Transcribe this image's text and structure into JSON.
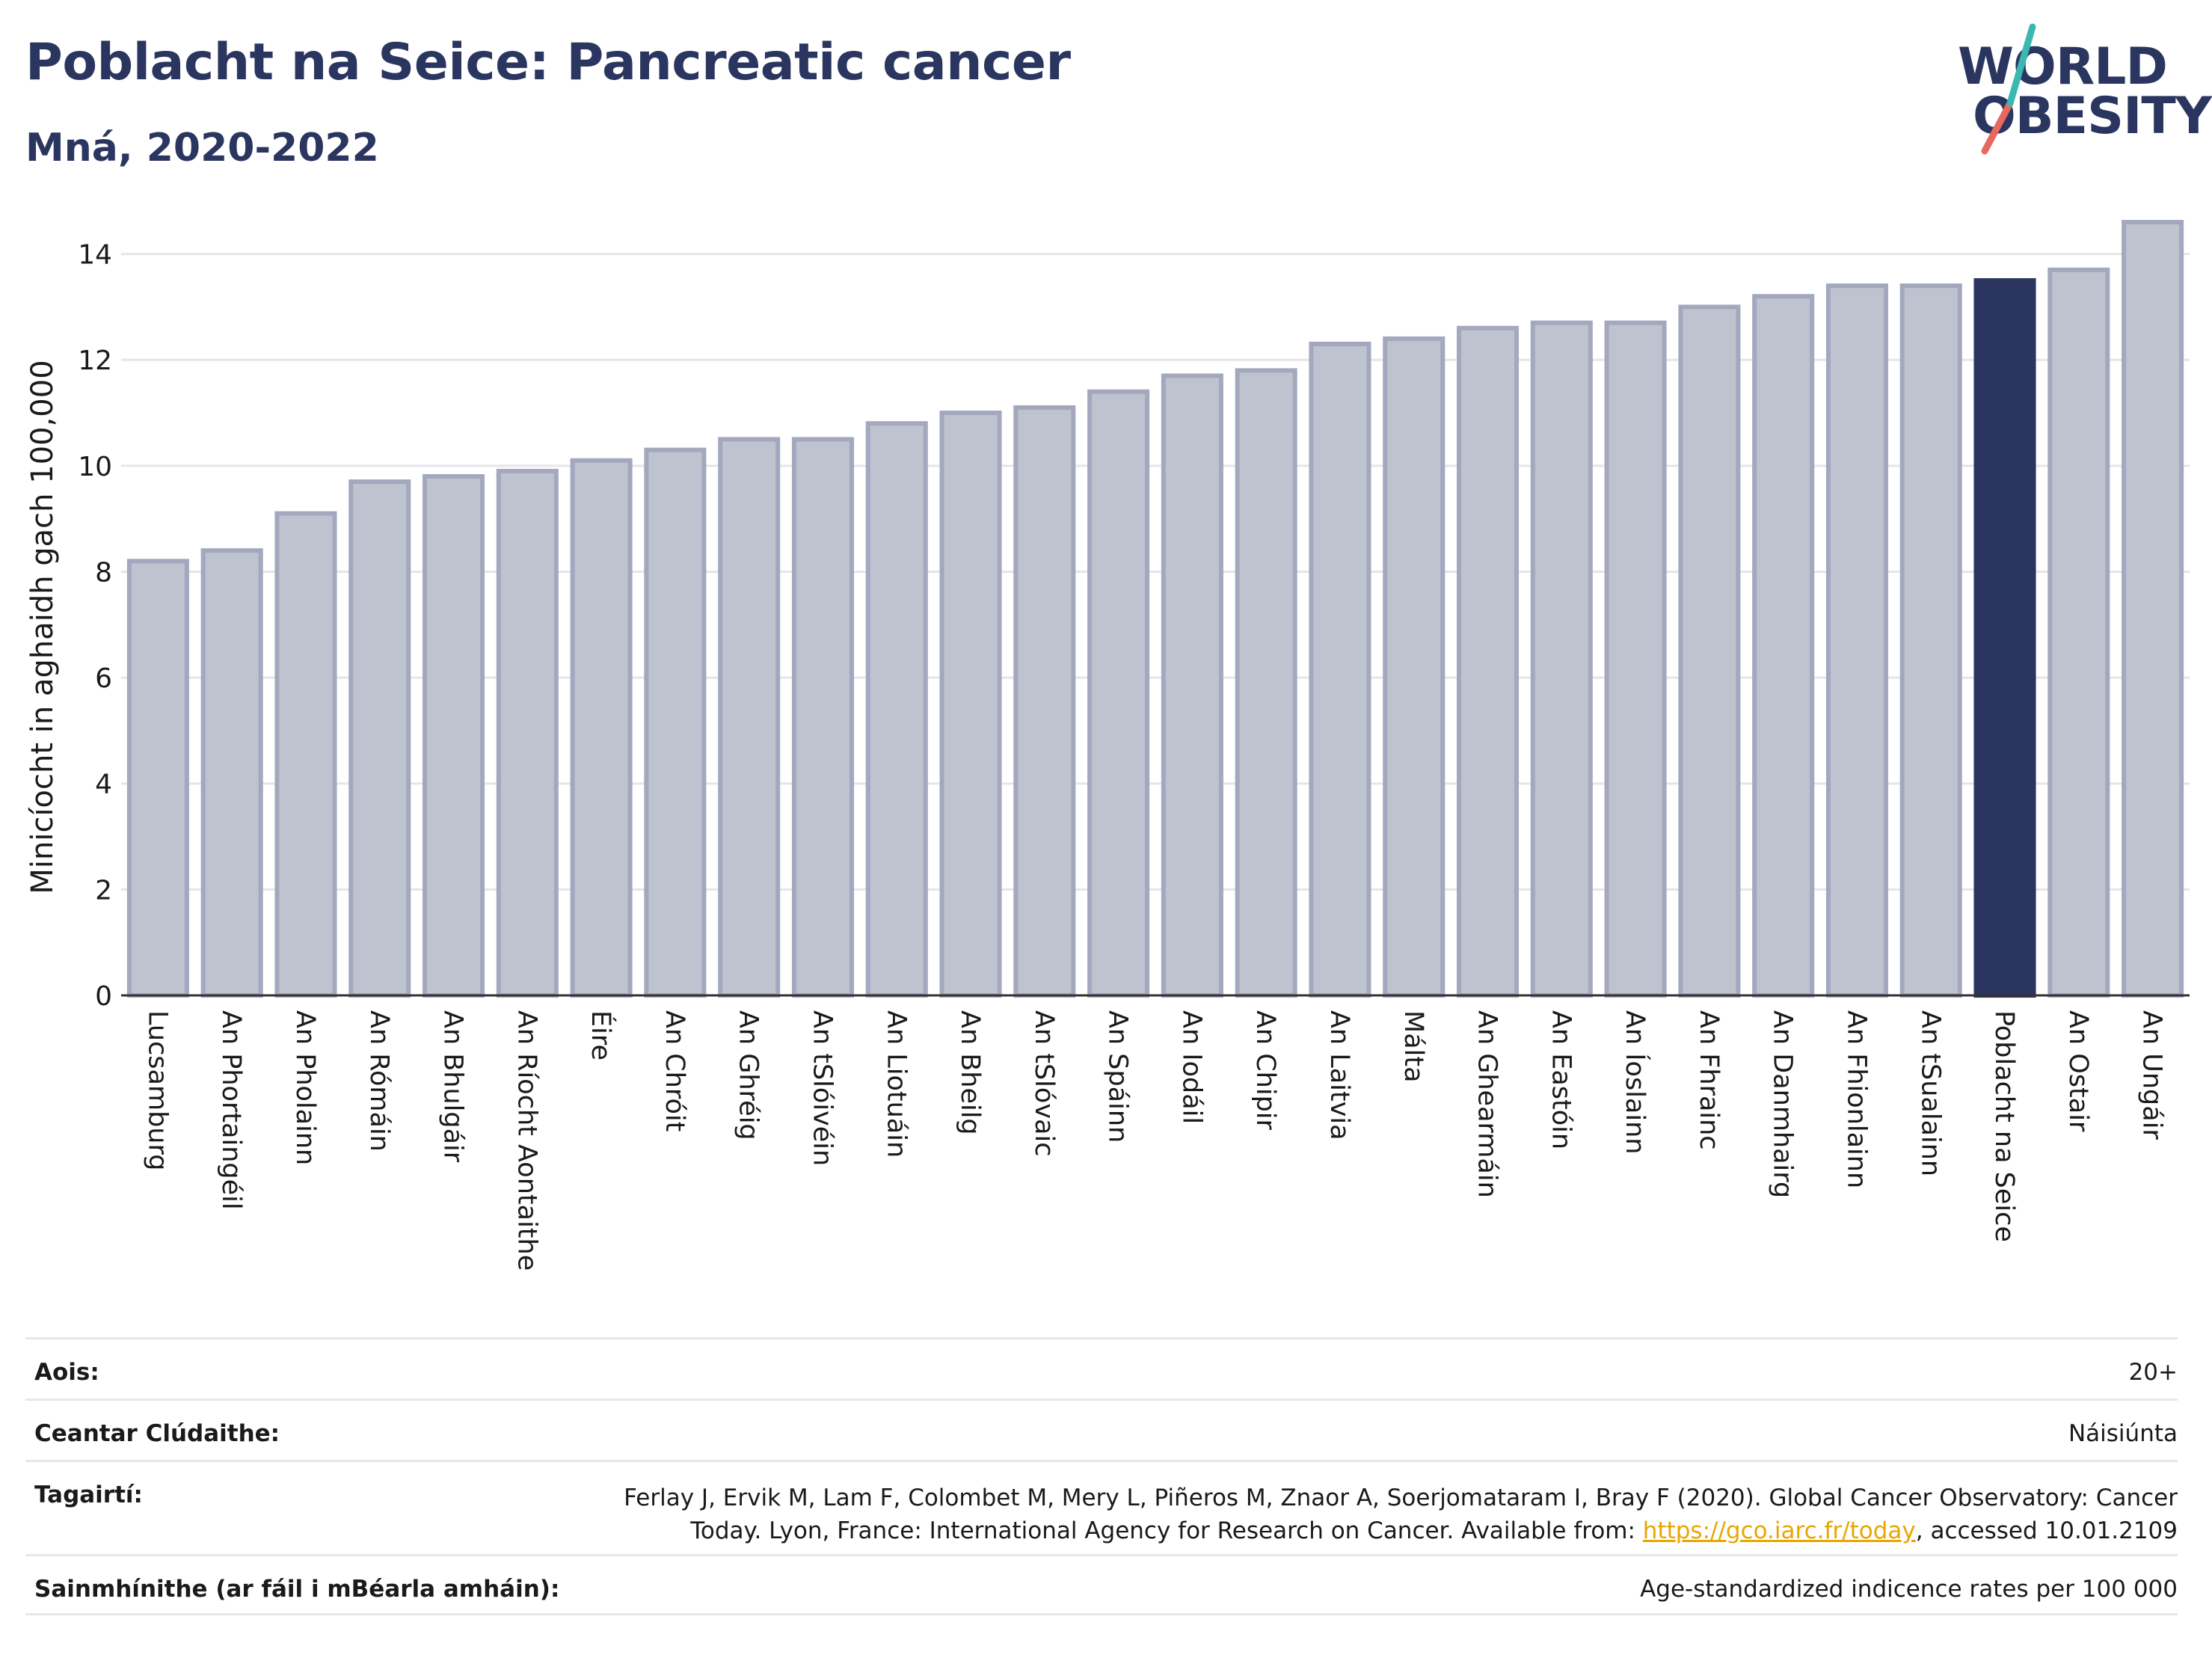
{
  "header": {
    "title": "Poblacht na Seice: Pancreatic cancer",
    "subtitle": "Mná, 2020-2022"
  },
  "logo": {
    "line1": "WORLD",
    "line2": "OBESITY"
  },
  "colors": {
    "bar": "#bfc2cf",
    "bar_border": "#a3a8be",
    "highlight": "#2b3660",
    "text": "#1a1a1a",
    "grid": "#e5e5ea"
  },
  "chart_data": {
    "type": "bar",
    "ylabel": "Minicíocht in aghaidh gach 100,000",
    "ylim": [
      0,
      14.7
    ],
    "yticks": [
      0,
      2,
      4,
      6,
      8,
      10,
      12,
      14
    ],
    "highlight": "Poblacht na Seice",
    "categories": [
      "Lucsamburg",
      "An Phortaingéil",
      "An Pholainn",
      "An Rómáin",
      "An Bhulgáir",
      "An Ríocht Aontaithe",
      "Éire",
      "An Chróit",
      "An Ghréig",
      "An tSlóivéin",
      "An Liotuáin",
      "An Bheilg",
      "An tSlóvaic",
      "An Spáinn",
      "An Iodáil",
      "An Chipir",
      "An Laitvia",
      "Málta",
      "An Ghearmáin",
      "An Eastóin",
      "An Íoslainn",
      "An Fhrainc",
      "An Danmhairg",
      "An Fhionlainn",
      "An tSualainn",
      "Poblacht na Seice",
      "An Ostair",
      "An Ungáir"
    ],
    "category_labels": [
      "Lucsamburg",
      "An Phortaingéil",
      "An Pholainn",
      "An Rómáin",
      "An Bhulgáir",
      "An Ríocht Aontaithe",
      "Éire",
      "An Chróit",
      "An Ghréig",
      "An tSlóivéin",
      "An Liotuáin",
      "An Bheilg",
      "An tSlóvaic",
      "An Spáinn",
      "An Iodáil",
      "An Chipir",
      "An Laitvia",
      "Málta",
      "An Ghearmáin",
      "An Eastóin",
      "An Íoslainn",
      "An Fhrainc",
      "An Danmhairg",
      "An Fhionlainn",
      "An tSualainn",
      "Poblacht na Seice",
      "An Ostair",
      "An Ungáir"
    ],
    "values": [
      8.2,
      8.4,
      9.1,
      9.7,
      9.8,
      9.9,
      10.1,
      10.3,
      10.5,
      10.5,
      10.8,
      11.0,
      11.1,
      11.4,
      11.7,
      11.8,
      12.3,
      12.4,
      12.6,
      12.7,
      12.7,
      13.0,
      13.2,
      13.4,
      13.4,
      13.5,
      13.7,
      14.6
    ]
  },
  "footer": {
    "age_label": "Aois:",
    "age_value": "20+",
    "area_label": "Ceantar Clúdaithe:",
    "area_value": "Náisiúnta",
    "refs_label": "Tagairtí:",
    "refs_text_before": "Ferlay J, Ervik M, Lam F, Colombet M, Mery L, Piñeros M, Znaor A, Soerjomataram I, Bray F (2020). Global Cancer Observatory: Cancer Today. Lyon, France: International Agency for Research on Cancer. Available from: ",
    "refs_link": "https://gco.iarc.fr/today",
    "refs_text_after": ", accessed 10.01.2109",
    "defs_label": "Sainmhínithe (ar fáil i mBéarla amháin):",
    "defs_value": "Age-standardized indicence rates per 100 000"
  }
}
